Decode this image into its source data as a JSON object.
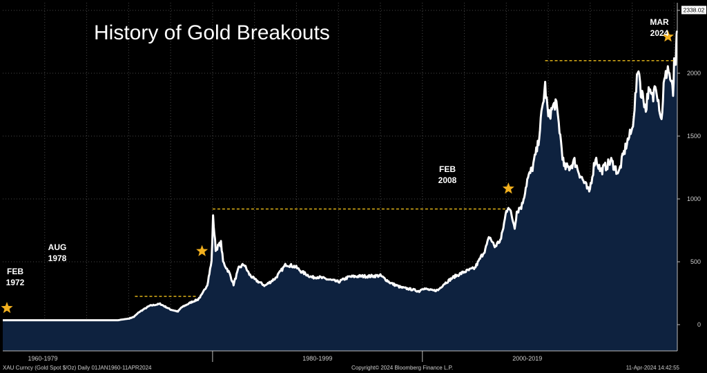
{
  "chart_data": {
    "type": "area",
    "title": "History of Gold Breakouts",
    "xlabel": "",
    "ylabel": "",
    "ylim": [
      -100,
      2550
    ],
    "y_ticks": [
      0,
      500,
      1000,
      1500,
      2000,
      2500
    ],
    "x_tick_labels": [
      "1960-1979",
      "1980-1999",
      "2000-2019"
    ],
    "grid": true,
    "last_value_label": "2338.02",
    "colors": {
      "line": "#ffffff",
      "fill": "#0e223f",
      "breakout_line": "#f2c21b",
      "star": "#f2b01e",
      "background": "#000000",
      "grid": "#4a4a4a"
    },
    "series": [
      {
        "x": [
          1960,
          1965,
          1971.0,
          1971.3,
          1971.5,
          1972.0,
          1972.5,
          1973.0,
          1974.0,
          1975.0,
          1976.0,
          1976.7,
          1977.0,
          1978.0,
          1978.6,
          1979.0,
          1979.5,
          1979.9,
          1980.05,
          1980.3,
          1980.8,
          1981.0,
          1981.6,
          1982.0,
          1982.5,
          1983.0,
          1983.5,
          1984.0,
          1985.0,
          1986.0,
          1987.0,
          1987.9,
          1988.5,
          1989.5,
          1990.0,
          1991.0,
          1992.0,
          1993.0,
          1994.0,
          1995.0,
          1996.0,
          1997.0,
          1998.0,
          1999.0,
          1999.7,
          2000.0,
          2001.0,
          2001.5,
          2002.0,
          2003.0,
          2004.0,
          2005.0,
          2006.0,
          2006.4,
          2006.9,
          2007.5,
          2008.0,
          2008.2,
          2008.8,
          2009.0,
          2009.5,
          2010.0,
          2010.5,
          2011.0,
          2011.7,
          2012.0,
          2012.7,
          2013.0,
          2013.5,
          2014.0,
          2014.5,
          2015.0,
          2015.9,
          2016.5,
          2017.0,
          2018.0,
          2018.7,
          2019.0,
          2019.5,
          2020.0,
          2020.6,
          2020.9,
          2021.0,
          2021.3,
          2021.5,
          2022.0,
          2022.2,
          2022.8,
          2023.0,
          2023.4,
          2023.7,
          2023.9,
          2024.0,
          2024.1,
          2024.2,
          2024.27
        ],
        "values": [
          35,
          35,
          35,
          40,
          42,
          48,
          62,
          100,
          150,
          165,
          120,
          104,
          135,
          180,
          200,
          240,
          320,
          500,
          850,
          600,
          650,
          500,
          410,
          320,
          450,
          480,
          400,
          360,
          310,
          370,
          480,
          460,
          420,
          375,
          380,
          360,
          340,
          380,
          385,
          385,
          390,
          330,
          295,
          280,
          265,
          290,
          270,
          275,
          320,
          380,
          420,
          450,
          600,
          700,
          620,
          680,
          900,
          950,
          780,
          900,
          950,
          1150,
          1250,
          1420,
          1900,
          1650,
          1770,
          1600,
          1250,
          1250,
          1300,
          1200,
          1050,
          1330,
          1220,
          1300,
          1200,
          1300,
          1450,
          1550,
          2060,
          1800,
          1850,
          1700,
          1850,
          1800,
          1950,
          1620,
          1900,
          2050,
          1930,
          1830,
          2060,
          2030,
          2170,
          2338
        ]
      }
    ],
    "annotations": [
      {
        "line1": "FEB",
        "line2": "1972",
        "x": 1972.1,
        "y": 48
      },
      {
        "line1": "AUG",
        "line2": "1978",
        "x": 1978.6,
        "y": 200
      },
      {
        "line1": "FEB",
        "line2": "2008",
        "x": 2008.2,
        "y": 950
      },
      {
        "line1": "MAR",
        "line2": "2024",
        "x": 2024.2,
        "y": 2170
      }
    ],
    "breakout_levels": [
      {
        "y": 225,
        "x_start": 1972.6,
        "x_end": 1978.4
      },
      {
        "y": 920,
        "x_start": 1980.0,
        "x_end": 2008.0
      },
      {
        "y": 2100,
        "x_start": 2011.7,
        "x_end": 2024.1
      }
    ]
  },
  "footer": {
    "left": "XAU Curncy (Gold Spot  $/Oz)  Daily 01JAN1960-11APR2024",
    "middle": "Copyright© 2024 Bloomberg Finance L.P.",
    "right": "11-Apr-2024 14:42:55"
  }
}
